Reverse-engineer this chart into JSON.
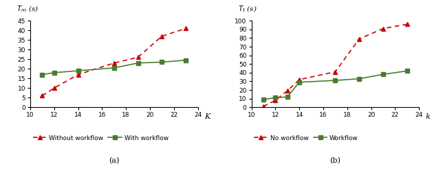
{
  "subplot_a": {
    "title": "(a)",
    "ylabel": "$T_m$ (s)",
    "xlabel": "K",
    "xlim": [
      10,
      24
    ],
    "ylim": [
      0,
      45
    ],
    "yticks": [
      0,
      5,
      10,
      15,
      20,
      25,
      30,
      35,
      40,
      45
    ],
    "xticks": [
      10,
      12,
      14,
      16,
      18,
      20,
      22,
      24
    ],
    "series1": {
      "label": "Without workflow",
      "x": [
        11,
        12,
        14,
        17,
        19,
        21,
        23
      ],
      "y": [
        6,
        10,
        17,
        23,
        26,
        37,
        41
      ],
      "color": "#cc0000",
      "linestyle": "dashed",
      "marker": "^"
    },
    "series2": {
      "label": "With workflow",
      "x": [
        11,
        12,
        14,
        17,
        19,
        21,
        23
      ],
      "y": [
        17,
        18,
        19,
        20.5,
        23,
        23.5,
        24.5
      ],
      "color": "#4a7c2f",
      "linestyle": "solid",
      "marker": "s"
    }
  },
  "subplot_b": {
    "title": "(b)",
    "ylabel": "$T_t$ (s)",
    "xlabel": "k",
    "xlim": [
      10,
      24
    ],
    "ylim": [
      0,
      100
    ],
    "yticks": [
      0,
      10,
      20,
      30,
      40,
      50,
      60,
      70,
      80,
      90,
      100
    ],
    "xticks": [
      10,
      12,
      14,
      16,
      18,
      20,
      22,
      24
    ],
    "series1": {
      "label": "No workflow",
      "x": [
        11,
        12,
        13,
        14,
        17,
        19,
        21,
        23
      ],
      "y": [
        1,
        8,
        19,
        32,
        41,
        79,
        91,
        96
      ],
      "color": "#cc0000",
      "linestyle": "dashed",
      "marker": "^"
    },
    "series2": {
      "label": "Workflow",
      "x": [
        11,
        12,
        13,
        14,
        17,
        19,
        21,
        23
      ],
      "y": [
        9,
        11,
        12,
        29,
        31,
        33,
        38,
        42
      ],
      "color": "#4a7c2f",
      "linestyle": "solid",
      "marker": "s"
    }
  },
  "background_color": "#ffffff",
  "font_size": 7.5,
  "tick_fontsize": 6.5,
  "legend_fontsize": 6.5,
  "marker_size": 4,
  "linewidth": 1.2
}
